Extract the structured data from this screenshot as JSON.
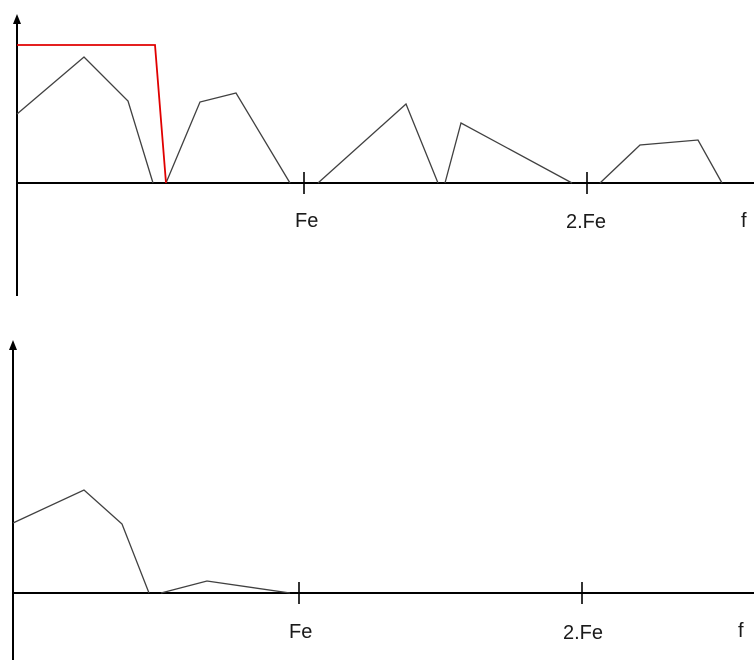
{
  "diagram": {
    "colors": {
      "axis": "#000000",
      "spectrum": "#404040",
      "filter": "#e00000"
    },
    "top_plot": {
      "x_tick_labels": [
        "Fe",
        "2.Fe"
      ],
      "x_axis_label": "f",
      "has_filter_curve": true
    },
    "bottom_plot": {
      "x_tick_labels": [
        "Fe",
        "2.Fe"
      ],
      "x_axis_label": "f"
    }
  }
}
